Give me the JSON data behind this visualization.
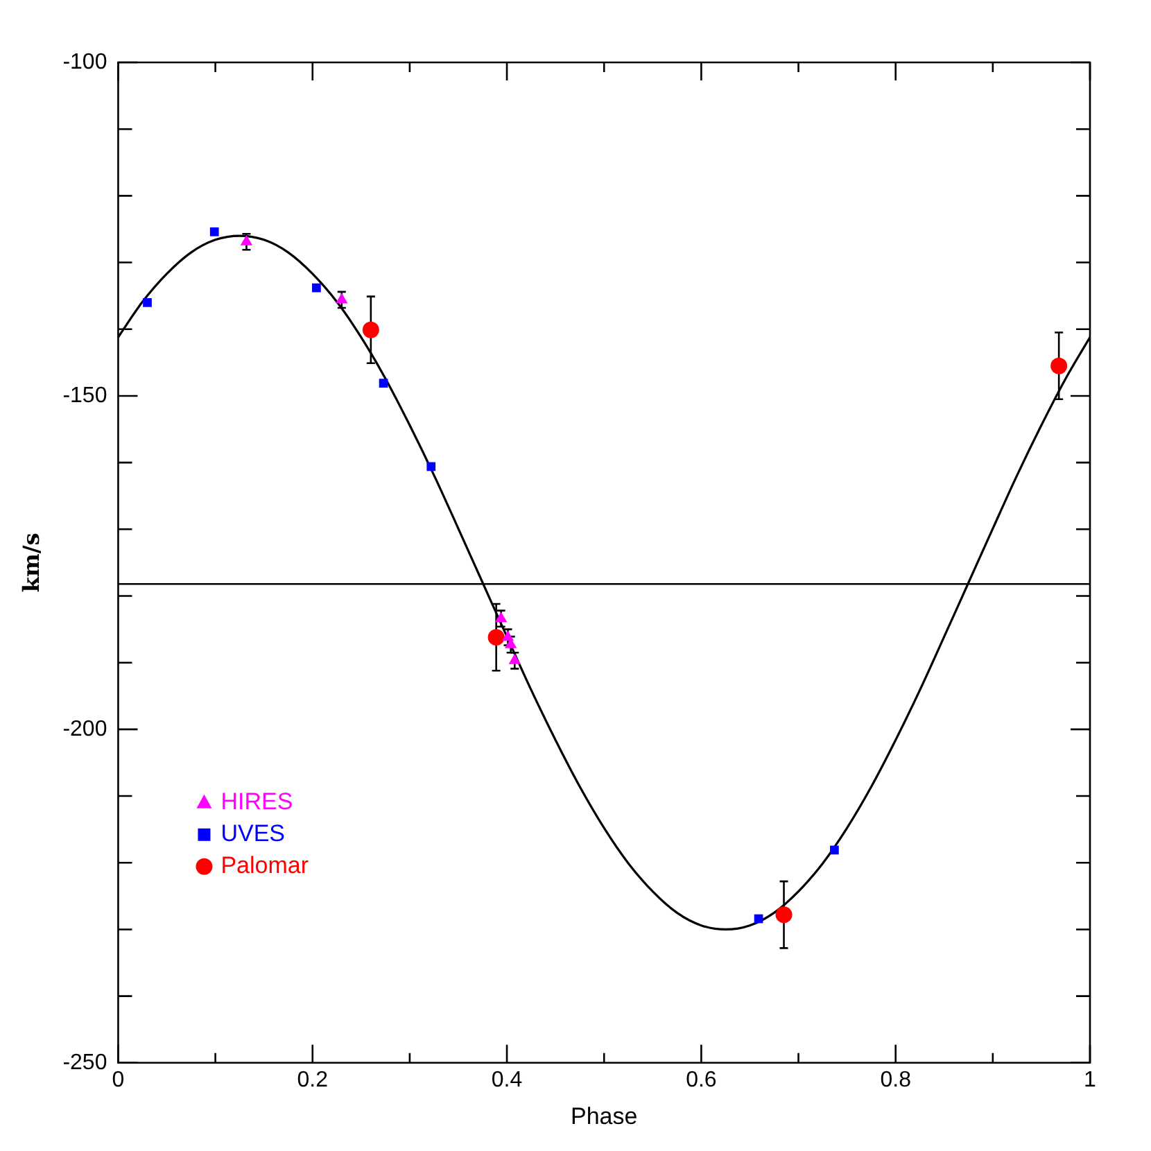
{
  "chart_data": {
    "type": "scatter",
    "xlabel": "Phase",
    "ylabel": "km/s",
    "xlim": [
      0,
      1
    ],
    "ylim": [
      -250,
      -100
    ],
    "xticks": [
      0,
      {
        "value": 0.1,
        "label": null
      },
      0.2,
      {
        "value": 0.3,
        "label": null
      },
      0.4,
      {
        "value": 0.5,
        "label": null
      },
      0.6,
      {
        "value": 0.7,
        "label": null
      },
      0.8,
      {
        "value": 0.9,
        "label": null
      },
      1
    ],
    "yticks": [
      -250,
      {
        "value": -240,
        "label": null
      },
      {
        "value": -230,
        "label": null
      },
      {
        "value": -220,
        "label": null
      },
      {
        "value": -210,
        "label": null
      },
      -200,
      {
        "value": -190,
        "label": null
      },
      {
        "value": -180,
        "label": null
      },
      {
        "value": -170,
        "label": null
      },
      {
        "value": -160,
        "label": null
      },
      -150,
      {
        "value": -140,
        "label": null
      },
      {
        "value": -130,
        "label": null
      },
      {
        "value": -120,
        "label": null
      },
      {
        "value": -110,
        "label": null
      },
      -100
    ],
    "grid": false,
    "legend": "bottom left",
    "ref_lines": [
      {
        "axis": "y",
        "value": -178.2,
        "color": "#000000"
      }
    ],
    "series": [
      {
        "name": "HIRES",
        "color": "#ff00ff",
        "marker": "triangle",
        "x": [
          0.132,
          0.23,
          0.394,
          0.401,
          0.404,
          0.408
        ],
        "values": [
          -126.9,
          -135.6,
          -183.4,
          -186.2,
          -187.3,
          -189.7
        ],
        "errors": [
          1.2,
          1.2,
          1.2,
          1.2,
          1.2,
          1.2
        ]
      },
      {
        "name": "UVES",
        "color": "#0000ff",
        "marker": "square",
        "x": [
          0.03,
          0.099,
          0.204,
          0.273,
          0.322,
          0.659,
          0.737
        ],
        "values": [
          -136.0,
          -125.4,
          -133.8,
          -148.1,
          -160.6,
          -228.4,
          -218.1
        ]
      },
      {
        "name": "Palomar",
        "color": "#ff0000",
        "marker": "circle",
        "x": [
          0.26,
          0.389,
          0.685,
          0.968
        ],
        "values": [
          -140.1,
          -186.2,
          -227.8,
          -145.5
        ],
        "errors": [
          5,
          5,
          5,
          5
        ]
      },
      {
        "type": "line",
        "color": "#000000",
        "marker": "none",
        "x": [
          0,
          0.025,
          0.05,
          0.075,
          0.1,
          0.125,
          0.15,
          0.175,
          0.2,
          0.225,
          0.25,
          0.275,
          0.3,
          0.325,
          0.35,
          0.375,
          0.4,
          0.425,
          0.45,
          0.475,
          0.5,
          0.525,
          0.55,
          0.575,
          0.6,
          0.625,
          0.65,
          0.675,
          0.7,
          0.725,
          0.75,
          0.775,
          0.8,
          0.825,
          0.85,
          0.875,
          0.9,
          0.925,
          0.95,
          0.975,
          1
        ],
        "values": [
          -141.2,
          -135.9,
          -131.7,
          -128.5,
          -126.6,
          -126,
          -126.6,
          -128.5,
          -131.7,
          -135.9,
          -141.2,
          -147.4,
          -154.4,
          -161.9,
          -169.9,
          -178,
          -186.1,
          -194.1,
          -201.6,
          -208.6,
          -214.8,
          -220.1,
          -224.3,
          -227.5,
          -229.4,
          -230,
          -229.4,
          -227.5,
          -224.3,
          -220.1,
          -214.8,
          -208.6,
          -201.6,
          -194.1,
          -186.1,
          -178,
          -169.9,
          -161.9,
          -154.4,
          -147.4,
          -141.2
        ]
      }
    ]
  }
}
